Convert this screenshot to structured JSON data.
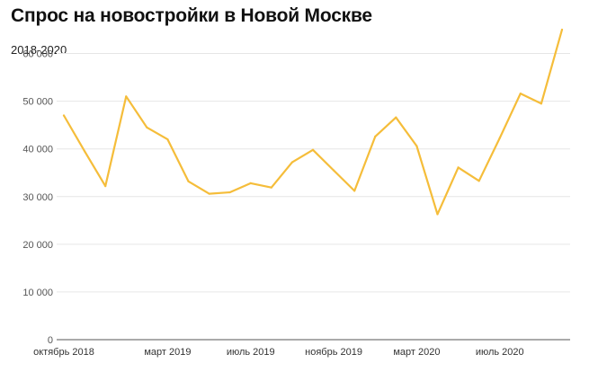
{
  "title": "Спрос на новостройки в Новой Москве",
  "subtitle": "2018-2020",
  "colors": {
    "line": "#f5bd3a",
    "grid": "#e6e6e6",
    "axis": "#555555"
  },
  "chart_data": {
    "type": "line",
    "title": "Спрос на новостройки в Новой Москве",
    "subtitle": "2018-2020",
    "xlabel": "",
    "ylabel": "",
    "ylim": [
      0,
      65000
    ],
    "yticks": [
      0,
      10000,
      20000,
      30000,
      40000,
      50000,
      60000
    ],
    "ytick_labels": [
      "0",
      "10 000",
      "20 000",
      "30 000",
      "40 000",
      "50 000",
      "60 000"
    ],
    "xtick_labels": [
      {
        "label": "октябрь 2018",
        "index": 0
      },
      {
        "label": "март 2019",
        "index": 5
      },
      {
        "label": "июль 2019",
        "index": 9
      },
      {
        "label": "ноябрь 2019",
        "index": 13
      },
      {
        "label": "март 2020",
        "index": 17
      },
      {
        "label": "июль 2020",
        "index": 21
      }
    ],
    "grid": true,
    "legend": "none",
    "series": [
      {
        "values": [
          47000,
          39500,
          32200,
          51000,
          44500,
          42000,
          33200,
          30600,
          30900,
          32800,
          31900,
          37200,
          39800,
          35500,
          31200,
          42600,
          46600,
          40600,
          26300,
          36100,
          33300,
          42300,
          51600,
          49500,
          65000
        ]
      }
    ]
  }
}
